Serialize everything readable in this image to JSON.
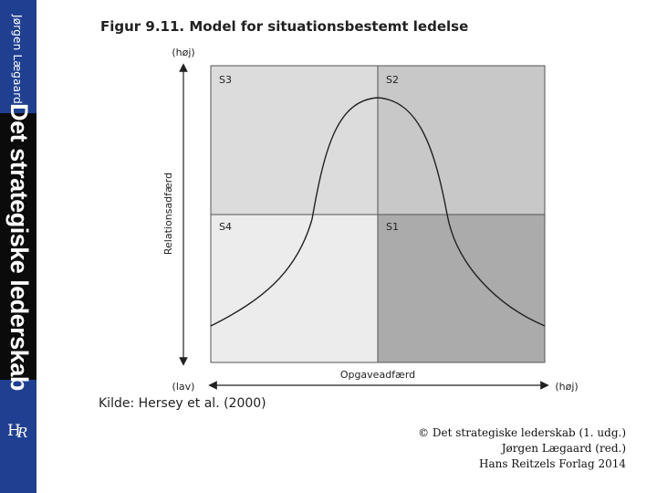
{
  "sidebar": {
    "author": "Jørgen Lægaard",
    "book_title": "Det strategiske lederskab",
    "logo": "HR"
  },
  "figure": {
    "title": "Figur 9.11. Model for situationsbestemt ledelse",
    "y_axis": {
      "label": "Relationsadfærd",
      "high": "(høj)"
    },
    "x_axis": {
      "label": "Opgaveadfærd",
      "low": "(lav)",
      "high": "(høj)"
    },
    "quadrants": [
      {
        "id": "S3",
        "label": "S3",
        "fill": "#dcdcdc"
      },
      {
        "id": "S2",
        "label": "S2",
        "fill": "#c8c8c8"
      },
      {
        "id": "S4",
        "label": "S4",
        "fill": "#ececec"
      },
      {
        "id": "S1",
        "label": "S1",
        "fill": "#ababab"
      }
    ]
  },
  "source": "Kilde: Hersey et al. (2000)",
  "copyright": {
    "line1": "© Det strategiske lederskab (1. udg.)",
    "line2": "Jørgen Lægaard (red.)",
    "line3": "Hans Reitzels Forlag 2014"
  }
}
